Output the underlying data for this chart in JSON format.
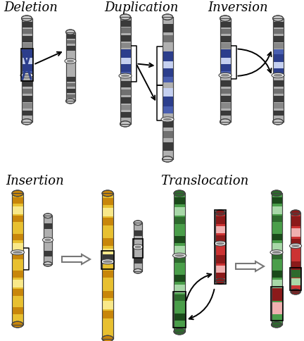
{
  "labels": {
    "deletion": "Deletion",
    "duplication": "Duplication",
    "inversion": "Inversion",
    "insertion": "Insertion",
    "translocation": "Translocation"
  },
  "colors": {
    "background": "#ffffff",
    "chrom_body": "#b0b0b0",
    "chrom_cap": "#c8c8c8",
    "chrom_outline": "#444444",
    "band_dark": "#3a3a3a",
    "band_mid": "#707070",
    "band_light": "#d0d0d0",
    "centromere_fill": "#888888",
    "blue_dark": "#2c3e8c",
    "blue_light": "#c5d0f0",
    "green_dark": "#2d6a2d",
    "green_mid": "#4a9e4a",
    "green_light": "#a8d8a8",
    "red_dark": "#8b1a1a",
    "red_mid": "#cc3333",
    "red_light": "#f0b0b0",
    "yellow_dark": "#c8860a",
    "yellow_mid": "#e8c030",
    "yellow_light": "#f8e88a"
  },
  "font_size": 13
}
